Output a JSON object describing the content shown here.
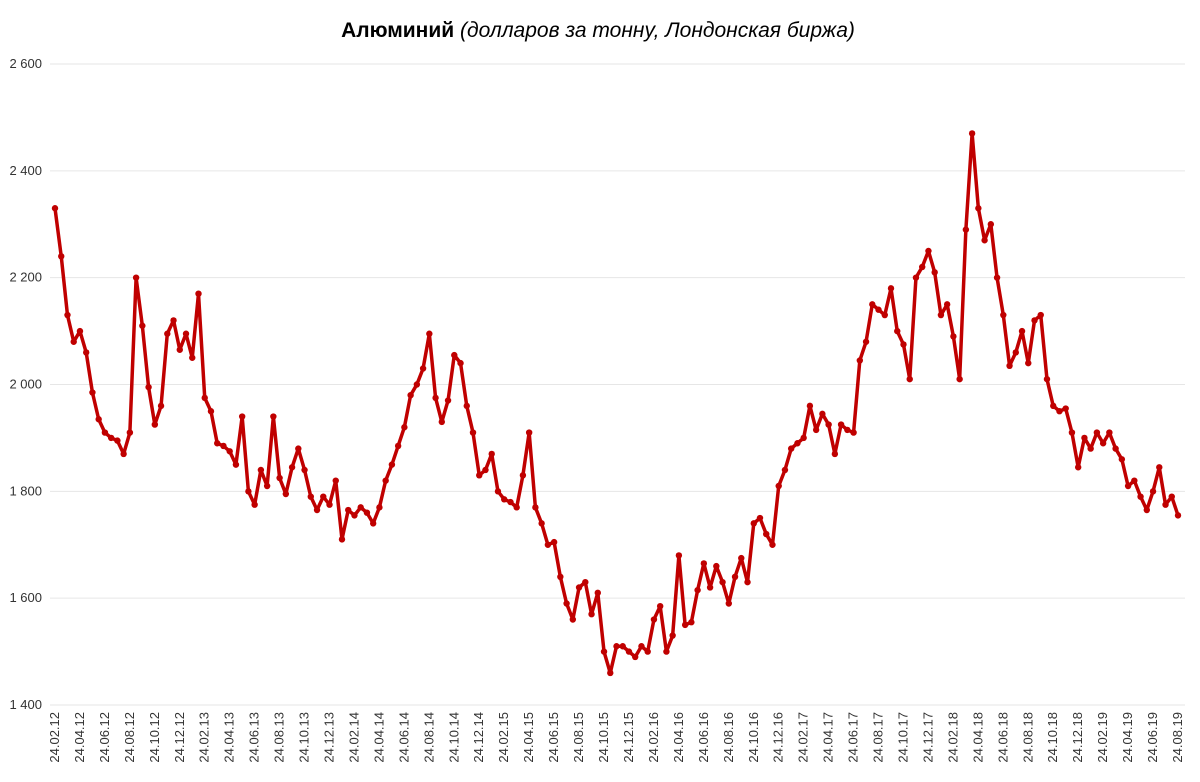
{
  "chart_data": {
    "type": "line",
    "title": "Алюминий",
    "subtitle": "(долларов за тонну, Лондонская биржа)",
    "categories": [
      "24.02.12",
      null,
      null,
      null,
      "24.04.12",
      null,
      null,
      null,
      "24.06.12",
      null,
      null,
      null,
      "24.08.12",
      null,
      null,
      null,
      "24.10.12",
      null,
      null,
      null,
      "24.12.12",
      null,
      null,
      null,
      "24.02.13",
      null,
      null,
      null,
      "24.04.13",
      null,
      null,
      null,
      "24.06.13",
      null,
      null,
      null,
      "24.08.13",
      null,
      null,
      null,
      "24.10.13",
      null,
      null,
      null,
      "24.12.13",
      null,
      null,
      null,
      "24.02.14",
      null,
      null,
      null,
      "24.04.14",
      null,
      null,
      null,
      "24.06.14",
      null,
      null,
      null,
      "24.08.14",
      null,
      null,
      null,
      "24.10.14",
      null,
      null,
      null,
      "24.12.14",
      null,
      null,
      null,
      "24.02.15",
      null,
      null,
      null,
      "24.04.15",
      null,
      null,
      null,
      "24.06.15",
      null,
      null,
      null,
      "24.08.15",
      null,
      null,
      null,
      "24.10.15",
      null,
      null,
      null,
      "24.12.15",
      null,
      null,
      null,
      "24.02.16",
      null,
      null,
      null,
      "24.04.16",
      null,
      null,
      null,
      "24.06.16",
      null,
      null,
      null,
      "24.08.16",
      null,
      null,
      null,
      "24.10.16",
      null,
      null,
      null,
      "24.12.16",
      null,
      null,
      null,
      "24.02.17",
      null,
      null,
      null,
      "24.04.17",
      null,
      null,
      null,
      "24.06.17",
      null,
      null,
      null,
      "24.08.17",
      null,
      null,
      null,
      "24.10.17",
      null,
      null,
      null,
      "24.12.17",
      null,
      null,
      null,
      "24.02.18",
      null,
      null,
      null,
      "24.04.18",
      null,
      null,
      null,
      "24.06.18",
      null,
      null,
      null,
      "24.08.18",
      null,
      null,
      null,
      "24.10.18",
      null,
      null,
      null,
      "24.12.18",
      null,
      null,
      null,
      "24.02.19",
      null,
      null,
      null,
      "24.04.19",
      null,
      null,
      null,
      "24.06.19",
      null,
      null,
      null,
      "24.08.19"
    ],
    "values": [
      2330,
      2240,
      2130,
      2080,
      2100,
      2060,
      1985,
      1935,
      1910,
      1900,
      1895,
      1870,
      1910,
      2200,
      2110,
      1995,
      1925,
      1960,
      2095,
      2120,
      2065,
      2095,
      2050,
      2170,
      1975,
      1950,
      1890,
      1885,
      1875,
      1850,
      1940,
      1800,
      1775,
      1840,
      1810,
      1940,
      1825,
      1795,
      1845,
      1880,
      1840,
      1790,
      1765,
      1790,
      1775,
      1820,
      1710,
      1765,
      1755,
      1770,
      1760,
      1740,
      1770,
      1820,
      1850,
      1885,
      1920,
      1980,
      2000,
      2030,
      2095,
      1975,
      1930,
      1970,
      2055,
      2040,
      1960,
      1910,
      1830,
      1840,
      1870,
      1800,
      1785,
      1780,
      1770,
      1830,
      1910,
      1770,
      1740,
      1700,
      1705,
      1640,
      1590,
      1560,
      1620,
      1630,
      1570,
      1610,
      1500,
      1460,
      1510,
      1510,
      1500,
      1490,
      1510,
      1500,
      1560,
      1585,
      1500,
      1530,
      1680,
      1550,
      1555,
      1615,
      1665,
      1620,
      1660,
      1630,
      1590,
      1640,
      1675,
      1630,
      1740,
      1750,
      1720,
      1700,
      1810,
      1840,
      1880,
      1890,
      1900,
      1960,
      1915,
      1945,
      1925,
      1870,
      1925,
      1915,
      1910,
      2045,
      2080,
      2150,
      2140,
      2130,
      2180,
      2100,
      2075,
      2010,
      2200,
      2220,
      2250,
      2210,
      2130,
      2150,
      2090,
      2010,
      2290,
      2470,
      2330,
      2270,
      2300,
      2200,
      2130,
      2035,
      2060,
      2100,
      2040,
      2120,
      2130,
      2010,
      1960,
      1950,
      1955,
      1910,
      1845,
      1900,
      1880,
      1910,
      1890,
      1910,
      1880,
      1860,
      1810,
      1820,
      1790,
      1765,
      1800,
      1845,
      1775,
      1790,
      1755
    ],
    "color": "#c00000",
    "ylim": [
      1400,
      2600
    ],
    "yticks": [
      {
        "value": 1400,
        "label": "1 400"
      },
      {
        "value": 1600,
        "label": "1 600"
      },
      {
        "value": 1800,
        "label": "1 800"
      },
      {
        "value": 2000,
        "label": "2 000"
      },
      {
        "value": 2200,
        "label": "2 200"
      },
      {
        "value": 2400,
        "label": "2 400"
      },
      {
        "value": 2600,
        "label": "2 600"
      }
    ],
    "grid": true
  }
}
